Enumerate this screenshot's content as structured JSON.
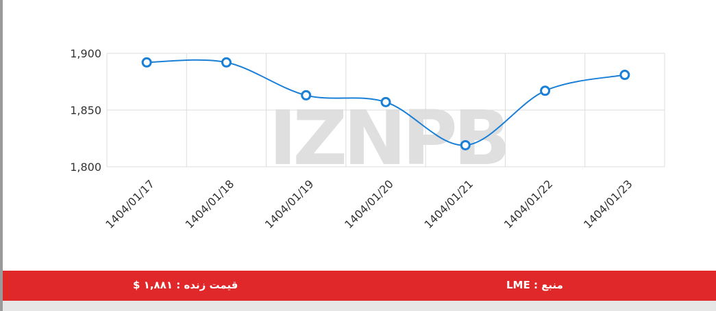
{
  "chart_data": {
    "type": "line",
    "categories": [
      "1404/01/17",
      "1404/01/18",
      "1404/01/19",
      "1404/01/20",
      "1404/01/21",
      "1404/01/22",
      "1404/01/23"
    ],
    "values": [
      1892,
      1892,
      1863,
      1857,
      1819,
      1867,
      1881
    ],
    "color": "#1a7fd6",
    "ylim": [
      1800,
      1900
    ],
    "yticks": [
      {
        "value": 1800,
        "label": "1,800"
      },
      {
        "value": 1850,
        "label": "1,850"
      },
      {
        "value": 1900,
        "label": "1,900"
      }
    ],
    "grid": true,
    "watermark": "IZNPB"
  },
  "footer": {
    "source": "منبع : LME",
    "live_price": "قیمت زنده : ۱,۸۸۱ $"
  }
}
